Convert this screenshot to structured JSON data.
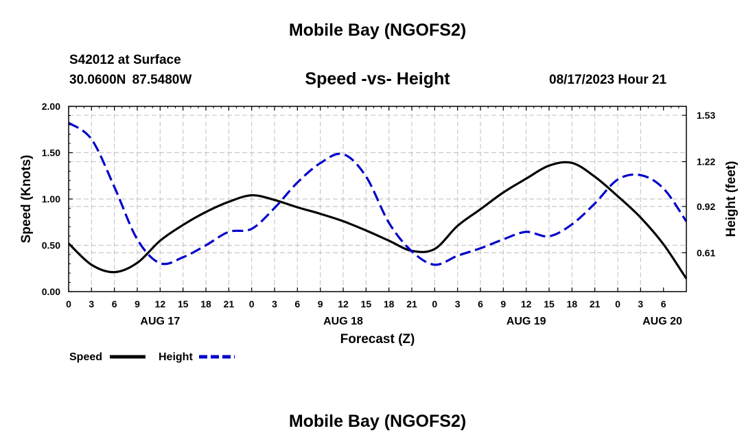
{
  "header": {
    "title": "Mobile Bay (NGOFS2)",
    "station": "S42012 at Surface",
    "coords": "30.0600N  87.5480W",
    "subtitle": "Speed -vs- Height",
    "datetime": "08/17/2023 Hour 21"
  },
  "footer": {
    "title": "Mobile Bay (NGOFS2)"
  },
  "chart_data": {
    "type": "line",
    "title": "Speed -vs- Height",
    "xlabel": "Forecast (Z)",
    "ylabel": "Speed (Knots)",
    "y2label": "Height (feet)",
    "xlim": [
      0,
      81
    ],
    "ylim": [
      0,
      2
    ],
    "y2lim": [
      0.35,
      1.59
    ],
    "x_tick_labels": [
      "0",
      "3",
      "6",
      "9",
      "12",
      "15",
      "18",
      "21",
      "0",
      "3",
      "6",
      "9",
      "12",
      "15",
      "18",
      "21",
      "0",
      "3",
      "6",
      "9",
      "12",
      "15",
      "18",
      "21",
      "0",
      "3",
      "6"
    ],
    "date_labels": [
      {
        "x": 12,
        "label": "AUG 17"
      },
      {
        "x": 36,
        "label": "AUG 18"
      },
      {
        "x": 60,
        "label": "AUG 19"
      },
      {
        "x": 84,
        "label": "AUG 20"
      }
    ],
    "y_tick_labels": [
      "0.00",
      "0.50",
      "1.00",
      "1.50",
      "2.00"
    ],
    "y_ticks": [
      0,
      0.5,
      1,
      1.5,
      2
    ],
    "y2_tick_labels": [
      "0.61",
      "0.92",
      "1.22",
      "1.53"
    ],
    "y2_ticks": [
      0.61,
      0.92,
      1.22,
      1.53
    ],
    "grid": true,
    "legend": "bottom-left",
    "series": [
      {
        "name": "Speed",
        "color": "#000000",
        "axis": "left",
        "style": "solid",
        "x": [
          0,
          3,
          6,
          9,
          12,
          15,
          18,
          21,
          24,
          27,
          30,
          33,
          36,
          39,
          42,
          45,
          48,
          51,
          54,
          57,
          60,
          63,
          66,
          69,
          72,
          75,
          78,
          81
        ],
        "y": [
          0.52,
          0.29,
          0.21,
          0.31,
          0.55,
          0.72,
          0.86,
          0.97,
          1.04,
          0.99,
          0.91,
          0.84,
          0.76,
          0.66,
          0.55,
          0.44,
          0.46,
          0.71,
          0.89,
          1.07,
          1.22,
          1.36,
          1.39,
          1.24,
          1.03,
          0.8,
          0.51,
          0.14
        ]
      },
      {
        "name": "Height",
        "color": "#0000cc",
        "axis": "right",
        "style": "dashed",
        "x": [
          0,
          3,
          6,
          9,
          12,
          15,
          18,
          21,
          24,
          27,
          30,
          33,
          36,
          39,
          42,
          45,
          48,
          51,
          54,
          57,
          60,
          63,
          66,
          69,
          72,
          75,
          78,
          81
        ],
        "y": [
          1.48,
          1.37,
          1.05,
          0.7,
          0.54,
          0.58,
          0.66,
          0.75,
          0.77,
          0.91,
          1.08,
          1.21,
          1.27,
          1.12,
          0.81,
          0.62,
          0.53,
          0.59,
          0.64,
          0.7,
          0.75,
          0.72,
          0.8,
          0.94,
          1.1,
          1.13,
          1.04,
          0.82
        ]
      }
    ]
  }
}
